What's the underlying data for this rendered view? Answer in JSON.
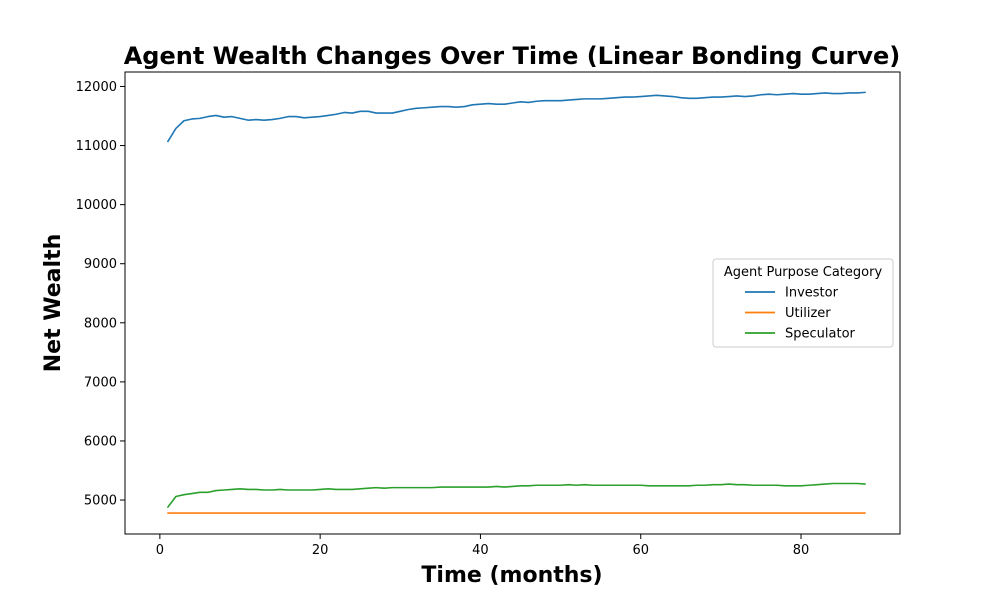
{
  "chart_data": {
    "type": "line",
    "title": "Agent Wealth Changes Over Time (Linear Bonding Curve)",
    "xlabel": "Time (months)",
    "ylabel": "Net Wealth",
    "xlim": [
      -4.35,
      92.35
    ],
    "ylim": [
      4425,
      12245
    ],
    "xticks": [
      0,
      20,
      40,
      60,
      80
    ],
    "yticks": [
      5000,
      6000,
      7000,
      8000,
      9000,
      10000,
      11000,
      12000
    ],
    "grid": false,
    "legend": {
      "title": "Agent Purpose Category",
      "placement": "center-right"
    },
    "x": [
      1,
      2,
      3,
      4,
      5,
      6,
      7,
      8,
      9,
      10,
      11,
      12,
      13,
      14,
      15,
      16,
      17,
      18,
      19,
      20,
      21,
      22,
      23,
      24,
      25,
      26,
      27,
      28,
      29,
      30,
      31,
      32,
      33,
      34,
      35,
      36,
      37,
      38,
      39,
      40,
      41,
      42,
      43,
      44,
      45,
      46,
      47,
      48,
      49,
      50,
      51,
      52,
      53,
      54,
      55,
      56,
      57,
      58,
      59,
      60,
      61,
      62,
      63,
      64,
      65,
      66,
      67,
      68,
      69,
      70,
      71,
      72,
      73,
      74,
      75,
      76,
      77,
      78,
      79,
      80,
      81,
      82,
      83,
      84,
      85,
      86,
      87,
      88
    ],
    "series": [
      {
        "name": "Investor",
        "color": "#1f77b4",
        "values": [
          11070,
          11290,
          11420,
          11450,
          11460,
          11490,
          11510,
          11480,
          11490,
          11460,
          11430,
          11440,
          11430,
          11440,
          11460,
          11490,
          11490,
          11470,
          11480,
          11490,
          11510,
          11530,
          11560,
          11550,
          11580,
          11580,
          11550,
          11550,
          11550,
          11580,
          11610,
          11630,
          11640,
          11650,
          11660,
          11660,
          11650,
          11660,
          11690,
          11700,
          11710,
          11700,
          11700,
          11720,
          11740,
          11730,
          11750,
          11760,
          11760,
          11760,
          11770,
          11780,
          11790,
          11790,
          11790,
          11800,
          11810,
          11820,
          11820,
          11830,
          11840,
          11850,
          11840,
          11830,
          11810,
          11800,
          11800,
          11810,
          11820,
          11820,
          11830,
          11840,
          11830,
          11840,
          11860,
          11870,
          11860,
          11870,
          11880,
          11870,
          11870,
          11880,
          11890,
          11880,
          11880,
          11890,
          11890,
          11900
        ]
      },
      {
        "name": "Utilizer",
        "color": "#ff7f0e",
        "values": [
          4780,
          4780,
          4780,
          4780,
          4780,
          4780,
          4780,
          4780,
          4780,
          4780,
          4780,
          4780,
          4780,
          4780,
          4780,
          4780,
          4780,
          4780,
          4780,
          4780,
          4780,
          4780,
          4780,
          4780,
          4780,
          4780,
          4780,
          4780,
          4780,
          4780,
          4780,
          4780,
          4780,
          4780,
          4780,
          4780,
          4780,
          4780,
          4780,
          4780,
          4780,
          4780,
          4780,
          4780,
          4780,
          4780,
          4780,
          4780,
          4780,
          4780,
          4780,
          4780,
          4780,
          4780,
          4780,
          4780,
          4780,
          4780,
          4780,
          4780,
          4780,
          4780,
          4780,
          4780,
          4780,
          4780,
          4780,
          4780,
          4780,
          4780,
          4780,
          4780,
          4780,
          4780,
          4780,
          4780,
          4780,
          4780,
          4780,
          4780,
          4780,
          4780,
          4780,
          4780,
          4780,
          4780,
          4780,
          4780
        ]
      },
      {
        "name": "Speculator",
        "color": "#2ca02c",
        "values": [
          4880,
          5060,
          5090,
          5110,
          5130,
          5130,
          5160,
          5170,
          5180,
          5190,
          5180,
          5180,
          5170,
          5170,
          5180,
          5170,
          5170,
          5170,
          5170,
          5180,
          5190,
          5180,
          5180,
          5180,
          5190,
          5200,
          5210,
          5200,
          5210,
          5210,
          5210,
          5210,
          5210,
          5210,
          5220,
          5220,
          5220,
          5220,
          5220,
          5220,
          5220,
          5230,
          5220,
          5230,
          5240,
          5240,
          5250,
          5250,
          5250,
          5250,
          5260,
          5250,
          5260,
          5250,
          5250,
          5250,
          5250,
          5250,
          5250,
          5250,
          5240,
          5240,
          5240,
          5240,
          5240,
          5240,
          5250,
          5250,
          5260,
          5260,
          5270,
          5260,
          5260,
          5250,
          5250,
          5250,
          5250,
          5240,
          5240,
          5240,
          5250,
          5260,
          5270,
          5280,
          5280,
          5280,
          5280,
          5270
        ]
      }
    ]
  }
}
